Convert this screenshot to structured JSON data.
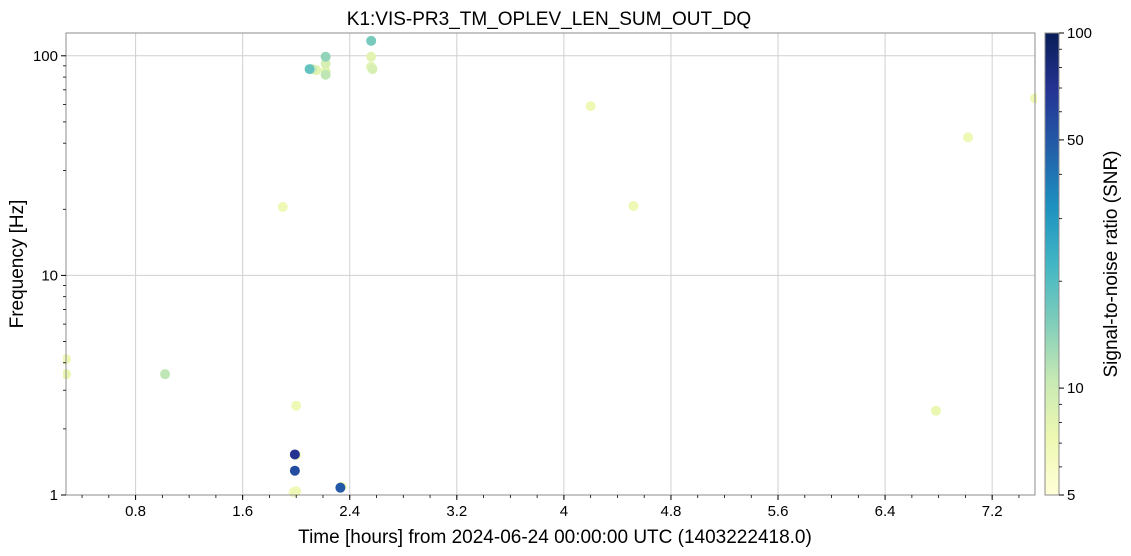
{
  "chart_data": {
    "type": "scatter",
    "title": "K1:VIS-PR3_TM_OPLEV_LEN_SUM_OUT_DQ",
    "xlabel": "Time [hours] from 2024-06-24 00:00:00 UTC (1403222418.0)",
    "ylabel": "Frequency [Hz]",
    "colorbar_label": "Signal-to-noise ratio (SNR)",
    "xlim": [
      0.28,
      7.52
    ],
    "ylim": [
      1,
      127
    ],
    "yscale": "log",
    "clim": [
      5,
      100
    ],
    "cscale": "log",
    "colormap": "YlGnBu",
    "grid": true,
    "x_ticks": [
      "0.8",
      "1.6",
      "2.4",
      "3.2",
      "4",
      "4.8",
      "5.6",
      "6.4",
      "7.2"
    ],
    "x_tick_values": [
      0.8,
      1.6,
      2.4,
      3.2,
      4.0,
      4.8,
      5.6,
      6.4,
      7.2
    ],
    "y_ticks": [
      "1",
      "10",
      "100"
    ],
    "y_tick_values": [
      1,
      10,
      100
    ],
    "colorbar_ticks": [
      "5",
      "10",
      "50",
      "100"
    ],
    "colorbar_tick_values": [
      5,
      10,
      50,
      100
    ],
    "points": [
      {
        "x": 0.28,
        "y": 4.15,
        "snr": 7
      },
      {
        "x": 0.28,
        "y": 3.55,
        "snr": 7.5
      },
      {
        "x": 1.02,
        "y": 3.55,
        "snr": 11
      },
      {
        "x": 1.9,
        "y": 20.5,
        "snr": 7
      },
      {
        "x": 1.98,
        "y": 1.03,
        "snr": 6.5
      },
      {
        "x": 2.0,
        "y": 1.04,
        "snr": 7
      },
      {
        "x": 2.0,
        "y": 2.55,
        "snr": 7
      },
      {
        "x": 2.0,
        "y": 1.52,
        "snr": 7
      },
      {
        "x": 1.99,
        "y": 1.53,
        "snr": 70
      },
      {
        "x": 1.99,
        "y": 1.29,
        "snr": 55
      },
      {
        "x": 2.34,
        "y": 1.09,
        "snr": 7
      },
      {
        "x": 2.33,
        "y": 1.08,
        "snr": 50
      },
      {
        "x": 2.1,
        "y": 87,
        "snr": 18
      },
      {
        "x": 2.12,
        "y": 87,
        "snr": 10
      },
      {
        "x": 2.15,
        "y": 86,
        "snr": 8
      },
      {
        "x": 2.22,
        "y": 99,
        "snr": 14
      },
      {
        "x": 2.22,
        "y": 92,
        "snr": 9
      },
      {
        "x": 2.22,
        "y": 85,
        "snr": 8
      },
      {
        "x": 2.22,
        "y": 82,
        "snr": 11
      },
      {
        "x": 2.56,
        "y": 117,
        "snr": 16
      },
      {
        "x": 2.56,
        "y": 99,
        "snr": 8
      },
      {
        "x": 2.56,
        "y": 89,
        "snr": 8
      },
      {
        "x": 2.57,
        "y": 87,
        "snr": 9
      },
      {
        "x": 4.2,
        "y": 59,
        "snr": 7
      },
      {
        "x": 4.52,
        "y": 20.7,
        "snr": 7
      },
      {
        "x": 6.78,
        "y": 2.42,
        "snr": 7.5
      },
      {
        "x": 7.02,
        "y": 42.5,
        "snr": 7
      },
      {
        "x": 7.52,
        "y": 64,
        "snr": 7
      }
    ]
  }
}
